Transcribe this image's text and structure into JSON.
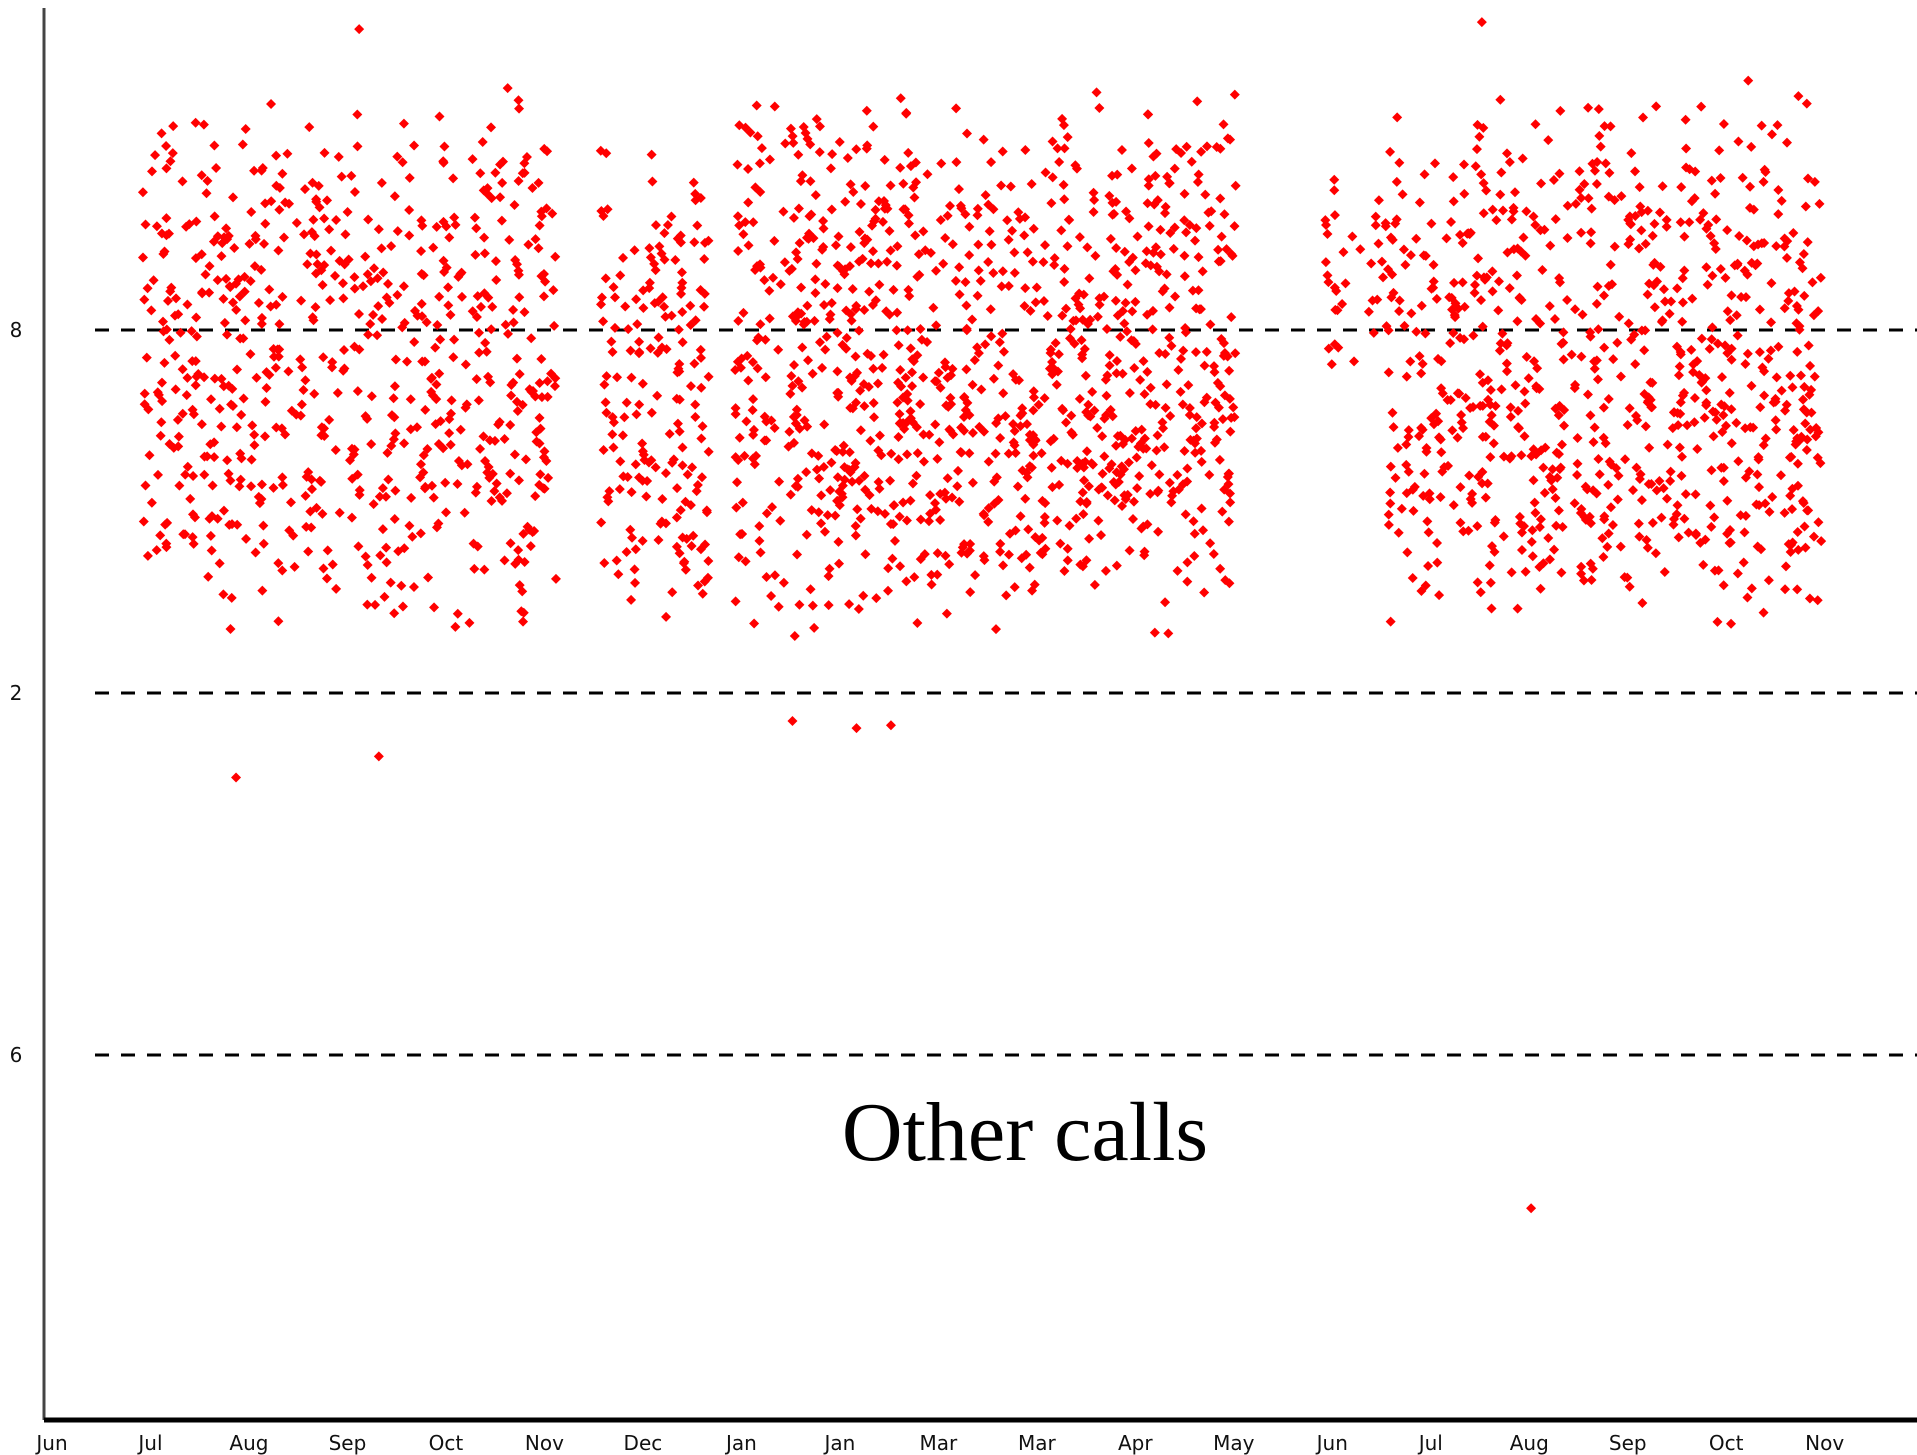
{
  "chart_data": {
    "type": "scatter",
    "title": "",
    "annotation": "Other calls",
    "xlabel": "",
    "ylabel": "",
    "x_ticks": [
      "Jun",
      "Jul",
      "Aug",
      "Sep",
      "Oct",
      "Nov",
      "Dec",
      "Jan",
      "Jan",
      "Mar",
      "Mar",
      "Apr",
      "May",
      "Jun",
      "Jul",
      "Aug",
      "Sep",
      "Oct",
      "Nov"
    ],
    "y_ticks": [
      "8",
      "2",
      "6"
    ],
    "reference_lines": [
      "8",
      "2",
      "6"
    ],
    "reference_line_style": "dashed",
    "marker_shape": "diamond",
    "series": [
      {
        "color": "#ff0000",
        "clusters": [
          {
            "x_range": [
              1.0,
              5.2
            ],
            "band": [
              0.6,
              4.6
            ],
            "count": 680
          },
          {
            "x_range": [
              5.65,
              6.75
            ],
            "band": [
              0.7,
              4.2
            ],
            "count": 190
          },
          {
            "x_range": [
              7.0,
              12.1
            ],
            "band": [
              0.6,
              4.6
            ],
            "count": 1060
          },
          {
            "x_range": [
              13.0,
              13.7
            ],
            "band": [
              2.5,
              4.0
            ],
            "count": 40
          },
          {
            "x_range": [
              13.65,
              18.05
            ],
            "band": [
              0.6,
              4.6
            ],
            "count": 810
          }
        ],
        "outliers": [
          {
            "x": 3.4,
            "y": -0.2
          },
          {
            "x": 1.95,
            "y": -0.35
          },
          {
            "x": 7.6,
            "y": 0.05
          },
          {
            "x": 8.25,
            "y": 0.0
          },
          {
            "x": 8.6,
            "y": 0.02
          },
          {
            "x": 15.1,
            "y": -3.4
          },
          {
            "x": 3.2,
            "y": 4.95
          },
          {
            "x": 14.6,
            "y": 5.0
          }
        ]
      }
    ],
    "y_range": [
      -4.9,
      5.1
    ],
    "x_range": [
      0,
      18.6
    ],
    "grid": false,
    "legend": "none"
  }
}
